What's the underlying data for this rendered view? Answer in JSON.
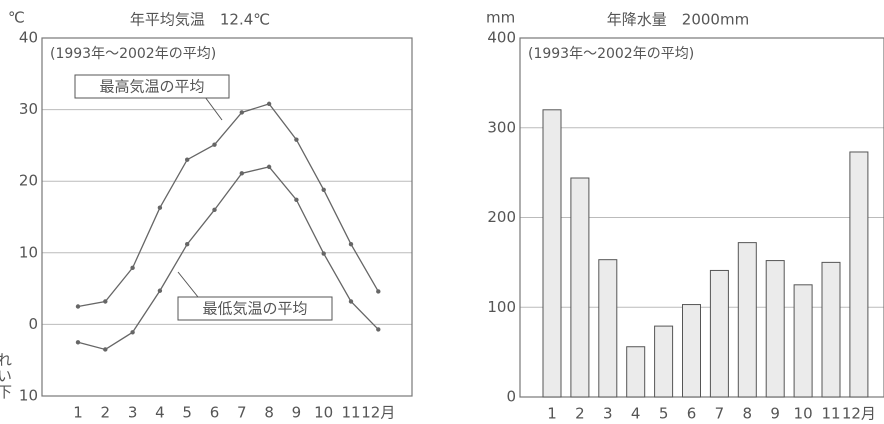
{
  "chart_data": [
    {
      "type": "line",
      "title": "年平均気温　12.4℃",
      "y_unit": "℃",
      "subtitle": "(1993年～2002年の平均)",
      "categories": [
        "1",
        "2",
        "3",
        "4",
        "5",
        "6",
        "7",
        "8",
        "9",
        "10",
        "11",
        "12月"
      ],
      "series": [
        {
          "name": "最高気温の平均",
          "color": "#666666",
          "values": [
            2.5,
            3.2,
            7.9,
            16.3,
            23.0,
            25.1,
            29.6,
            30.8,
            25.8,
            18.8,
            11.2,
            4.6
          ]
        },
        {
          "name": "最低気温の平均",
          "color": "#666666",
          "values": [
            -2.5,
            -3.5,
            -1.1,
            4.7,
            11.2,
            16.0,
            21.1,
            22.0,
            17.4,
            9.9,
            3.2,
            -0.7
          ]
        }
      ],
      "ylim": [
        -10,
        40
      ],
      "yticks": [
        {
          "value": -10,
          "label": "10"
        },
        0,
        10,
        20,
        30,
        40
      ],
      "below_zero_label": "れい下",
      "grid": true
    },
    {
      "type": "bar",
      "title": "年降水量　2000mm",
      "y_unit": "mm",
      "subtitle": "(1993年～2002年の平均)",
      "categories": [
        "1",
        "2",
        "3",
        "4",
        "5",
        "6",
        "7",
        "8",
        "9",
        "10",
        "11",
        "12月"
      ],
      "values": [
        320,
        244,
        153,
        56,
        79,
        103,
        141,
        172,
        152,
        125,
        150,
        273
      ],
      "color": "#ebebeb",
      "ylim": [
        0,
        400
      ],
      "yticks": [
        0,
        100,
        200,
        300,
        400
      ],
      "grid": true
    }
  ]
}
